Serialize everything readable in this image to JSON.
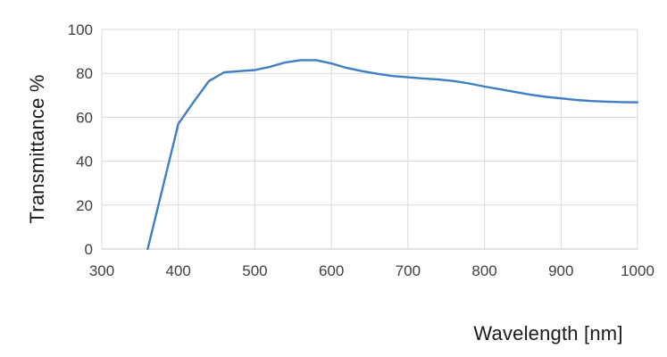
{
  "chart_data": {
    "type": "line",
    "title": "",
    "xlabel": "Wavelength [nm]",
    "ylabel": "Transmittance %",
    "xlim": [
      300,
      1000
    ],
    "ylim": [
      0,
      100
    ],
    "x_ticks": [
      300,
      400,
      500,
      600,
      700,
      800,
      900,
      1000
    ],
    "y_ticks": [
      0,
      20,
      40,
      60,
      80,
      100
    ],
    "grid": true,
    "legend_position": "none",
    "series": [
      {
        "color": "#3E7EC6",
        "points": [
          [
            360,
            0
          ],
          [
            400,
            57
          ],
          [
            420,
            67
          ],
          [
            440,
            76.5
          ],
          [
            460,
            80.5
          ],
          [
            480,
            81
          ],
          [
            500,
            81.5
          ],
          [
            520,
            83
          ],
          [
            540,
            85
          ],
          [
            560,
            86
          ],
          [
            580,
            86
          ],
          [
            600,
            84.5
          ],
          [
            620,
            82.5
          ],
          [
            640,
            81
          ],
          [
            660,
            79.8
          ],
          [
            680,
            78.8
          ],
          [
            700,
            78.2
          ],
          [
            720,
            77.7
          ],
          [
            740,
            77.2
          ],
          [
            760,
            76.5
          ],
          [
            780,
            75.4
          ],
          [
            800,
            74
          ],
          [
            820,
            72.8
          ],
          [
            840,
            71.5
          ],
          [
            860,
            70.3
          ],
          [
            880,
            69.3
          ],
          [
            900,
            68.6
          ],
          [
            920,
            67.9
          ],
          [
            940,
            67.4
          ],
          [
            960,
            67.1
          ],
          [
            980,
            66.9
          ],
          [
            1000,
            66.8
          ]
        ]
      }
    ],
    "colors": {
      "gridline": "#D9D9D9",
      "axis_line": "#C6C6C6",
      "plot_border": "#D9D9D9",
      "tick_label": "#404040",
      "axis_title": "#1a1a1a",
      "background": "#FFFFFF"
    }
  }
}
